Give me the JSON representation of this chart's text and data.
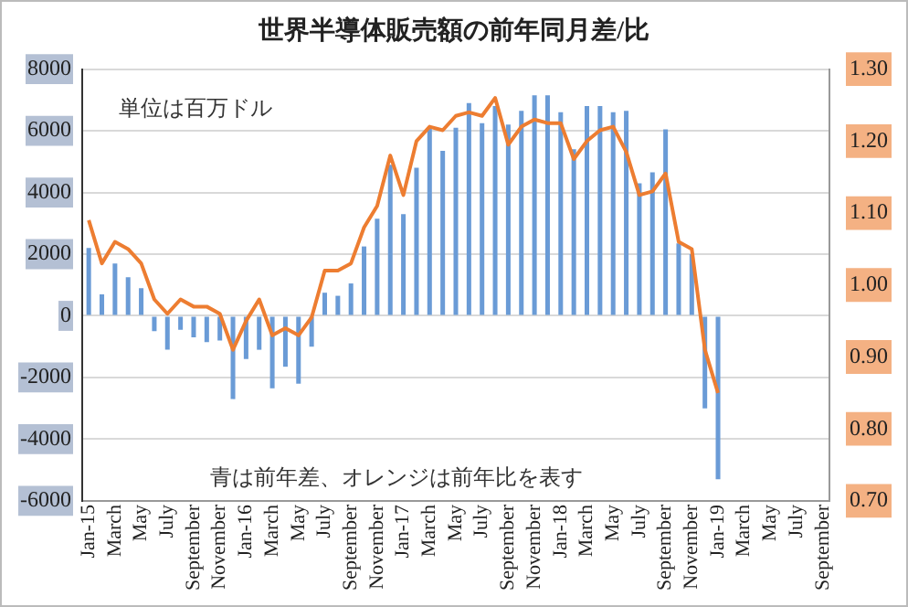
{
  "chart_data": {
    "type": "bar",
    "title": "世界半導体販売額の前年同月差/比",
    "categories": [
      "Jan-15",
      null,
      "March",
      null,
      "May",
      null,
      "July",
      null,
      "September",
      null,
      "November",
      null,
      "Jan-16",
      null,
      "March",
      null,
      "May",
      null,
      "July",
      null,
      "September",
      null,
      "November",
      null,
      "Jan-17",
      null,
      "March",
      null,
      "May",
      null,
      "July",
      null,
      "September",
      null,
      "November",
      null,
      "Jan-18",
      null,
      "March",
      null,
      "May",
      null,
      "July",
      null,
      "September",
      null,
      "November",
      null,
      "Jan-19",
      null,
      "March",
      null,
      "May",
      null,
      "July",
      null,
      "September"
    ],
    "series": [
      {
        "type": "bar",
        "color": "#6a9bd6",
        "values": [
          2200,
          700,
          1700,
          1250,
          900,
          -500,
          -1100,
          -450,
          -700,
          -850,
          -800,
          -2700,
          -1400,
          -1100,
          -2350,
          -1650,
          -2200,
          -1000,
          750,
          650,
          1050,
          2250,
          3150,
          4900,
          3300,
          4800,
          6100,
          5350,
          6100,
          6900,
          6250,
          6800,
          6200,
          6650,
          7150,
          7150,
          6600,
          5400,
          6800,
          6800,
          6600,
          6650,
          4300,
          4650,
          6050,
          2350,
          2000,
          -3000,
          -5300,
          null,
          null,
          null,
          null,
          null,
          null,
          null,
          null
        ]
      },
      {
        "type": "line",
        "axis": "y2",
        "color": "#ed7d31",
        "values": [
          1.09,
          1.03,
          1.06,
          1.05,
          1.03,
          0.98,
          0.96,
          0.98,
          0.97,
          0.97,
          0.96,
          0.91,
          0.95,
          0.98,
          0.93,
          0.94,
          0.93,
          0.955,
          1.02,
          1.02,
          1.03,
          1.08,
          1.11,
          1.18,
          1.125,
          1.2,
          1.22,
          1.215,
          1.235,
          1.24,
          1.235,
          1.26,
          1.195,
          1.22,
          1.23,
          1.225,
          1.225,
          1.175,
          1.2,
          1.215,
          1.22,
          1.185,
          1.125,
          1.13,
          1.155,
          1.06,
          1.05,
          0.91,
          0.85,
          null,
          null,
          null,
          null,
          null,
          null,
          null,
          null
        ]
      }
    ],
    "ylim": [
      -6000,
      8000
    ],
    "yticks": [
      -6000,
      -4000,
      -2000,
      0,
      2000,
      4000,
      6000,
      8000
    ],
    "y2lim": [
      0.7,
      1.3
    ],
    "y2ticks": [
      {
        "value": 0.7,
        "label": "0.70"
      },
      {
        "value": 0.8,
        "label": "0.80"
      },
      {
        "value": 0.9,
        "label": "0.90"
      },
      {
        "value": 1.0,
        "label": "1.00"
      },
      {
        "value": 1.1,
        "label": "1.10"
      },
      {
        "value": 1.2,
        "label": "1.20"
      },
      {
        "value": 1.3,
        "label": "1.30"
      }
    ],
    "grid": "y",
    "marker": "none",
    "annotations": [
      "単位は百万ドル",
      "青は前年差、オレンジは前年比を表す"
    ]
  }
}
